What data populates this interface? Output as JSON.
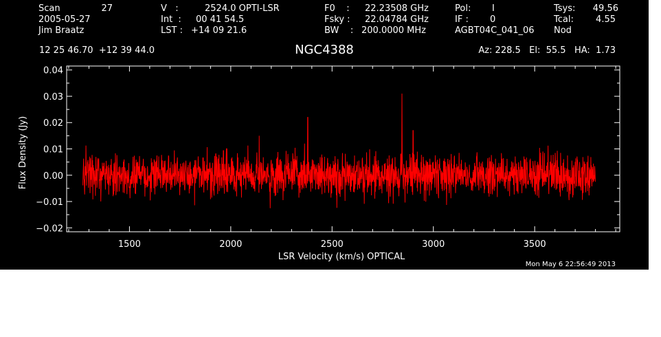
{
  "header": {
    "col1": {
      "scan_label": "Scan",
      "scan_value": "27",
      "date": "2005-05-27",
      "observer": "Jim Braatz"
    },
    "col2": {
      "v_label": "V   :",
      "v_value": "2524.0 OPTI-LSR",
      "int_label": "Int  :",
      "int_value": "00 41 54.5",
      "lst_label": "LST :",
      "lst_value": "+14 09 21.6"
    },
    "col3": {
      "f0_label": "F0    :",
      "f0_value": "22.23508 GHz",
      "fsky_label": "Fsky :",
      "fsky_value": "22.04784 GHz",
      "bw_label": "BW    :",
      "bw_value": "200.0000 MHz"
    },
    "col4": {
      "pol_label": "Pol:",
      "pol_value": "I",
      "if_label": "IF :",
      "if_value": "0",
      "project": "AGBT04C_041_06",
      "procedure": "Nod"
    },
    "col5": {
      "tsys_label": "Tsys:",
      "tsys_value": "49.56",
      "tcal_label": "Tcal:",
      "tcal_value": "4.55"
    },
    "coords": "12 25 46.70  +12 39 44.0",
    "pointing": "Az: 228.5   El:  55.5   HA:  1.73",
    "source": "NGC4388",
    "timestamp": "Mon May  6 22:56:49 2013"
  },
  "chart_data": {
    "type": "line",
    "title": "NGC4388",
    "xlabel": "LSR Velocity (km/s) OPTICAL",
    "ylabel": "Flux Density (Jy)",
    "xlim": [
      1190,
      3920
    ],
    "ylim": [
      -0.0215,
      0.0415
    ],
    "x_ticks": [
      1500,
      2000,
      2500,
      3000,
      3500
    ],
    "x_tick_labels": [
      "1500",
      "2000",
      "2500",
      "3000",
      "3500"
    ],
    "y_ticks": [
      -0.02,
      -0.01,
      0.0,
      0.01,
      0.02,
      0.03,
      0.04
    ],
    "y_tick_labels": [
      "−0.02",
      "−0.01",
      "0.00",
      "0.01",
      "0.02",
      "0.03",
      "0.04"
    ],
    "grid": false,
    "series_color": "#ff0000",
    "axis_color": "#ffffff",
    "background": "#000000",
    "x_range": [
      1270,
      3800
    ],
    "noise_rms_jy": 0.004,
    "features": [
      {
        "x": 2140,
        "y": 0.015
      },
      {
        "x": 2380,
        "y": 0.022
      },
      {
        "x": 2845,
        "y": 0.031
      },
      {
        "x": 2900,
        "y": 0.017
      }
    ]
  }
}
